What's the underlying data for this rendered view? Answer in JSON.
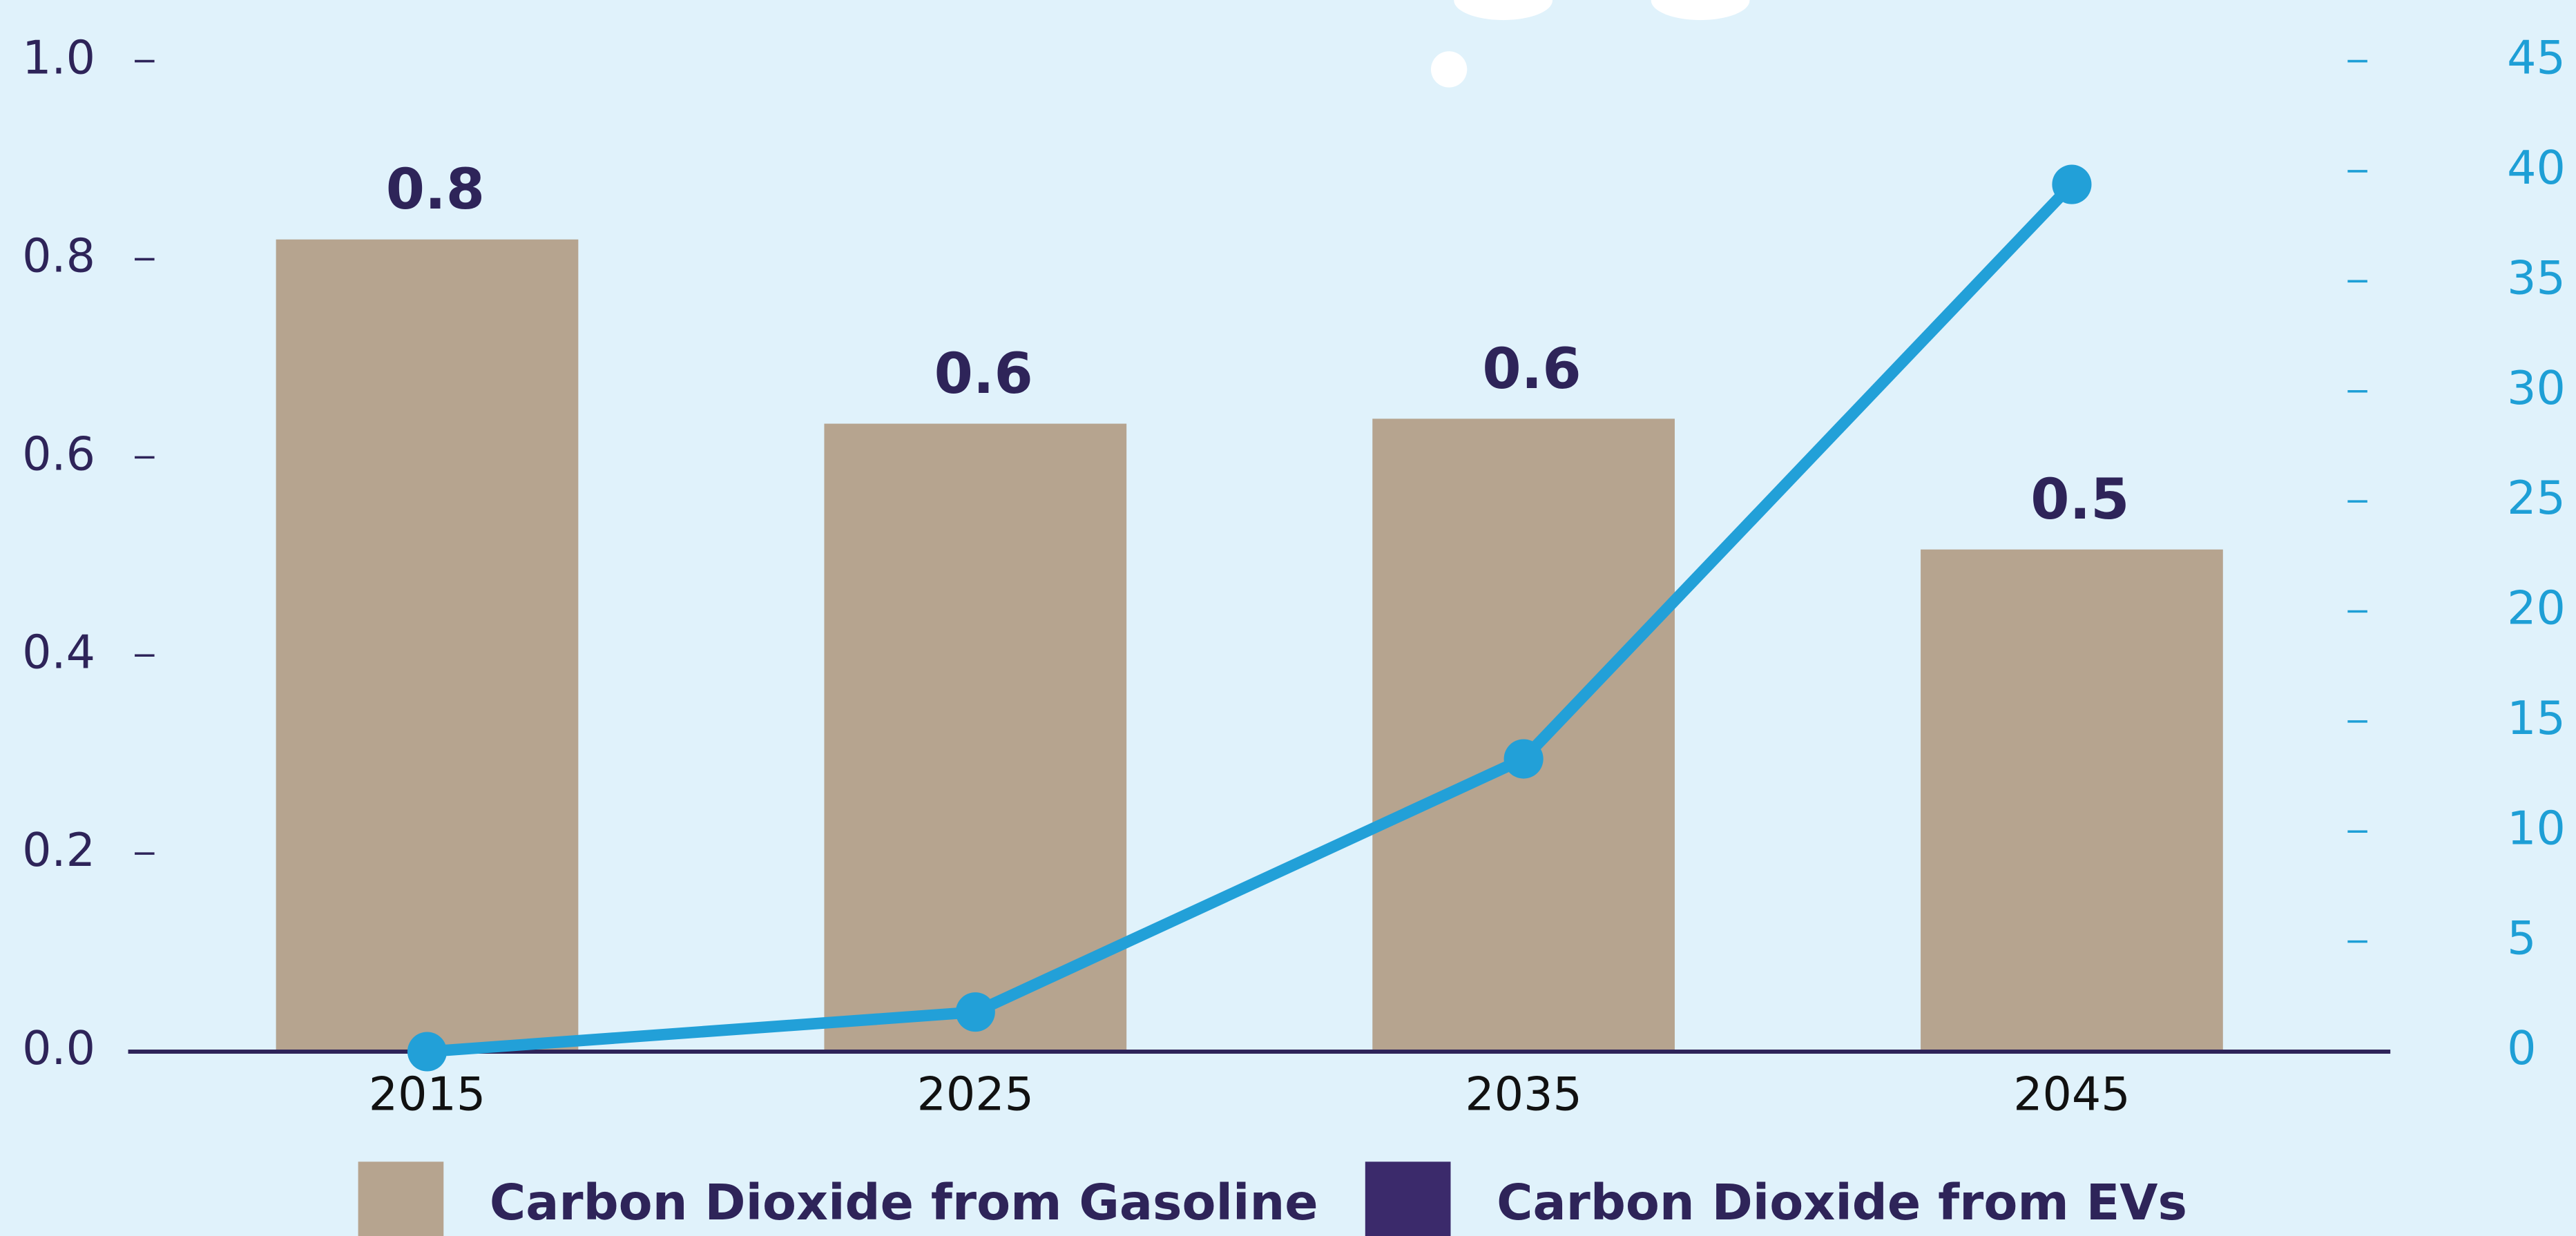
{
  "chart_data": {
    "type": "bar",
    "categories": [
      "2015",
      "2025",
      "2035",
      "2045"
    ],
    "series": [
      {
        "name": "Carbon Dioxide from Gasoline",
        "type": "bar",
        "color": "#b6a48f",
        "values": [
          0.82,
          0.634,
          0.639,
          0.507
        ],
        "value_labels": [
          "0.8",
          "0.6",
          "0.6",
          "0.5"
        ]
      },
      {
        "type": "line",
        "axis": "y2",
        "color": "#22a0d8",
        "values": [
          0,
          1.8,
          13.3,
          39.4
        ]
      }
    ],
    "legend": [
      {
        "name": "Carbon Dioxide from Gasoline",
        "color": "#b6a48f"
      },
      {
        "name": "Carbon Dioxide from EVs",
        "color": "#3b2a6b"
      }
    ],
    "ylim": [
      0,
      1.0
    ],
    "yticks": [
      {
        "value": 0,
        "label": "0.0"
      },
      0.2,
      0.4,
      0.6,
      0.8,
      {
        "value": 1,
        "label": "1.0"
      }
    ],
    "y2lim": [
      0,
      45
    ],
    "y2ticks": [
      0,
      5,
      10,
      15,
      20,
      25,
      30,
      35,
      40,
      45
    ]
  }
}
